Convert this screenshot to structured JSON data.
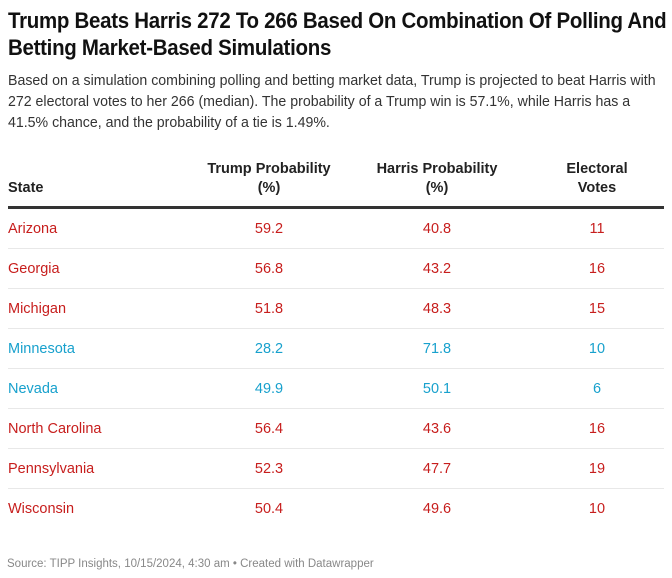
{
  "title": "Trump Beats Harris 272 To 266 Based On Combination Of Polling And Betting Market-Based Simulations",
  "description": "Based on a simulation combining polling and betting market data, Trump is projected to beat Harris with 272 electoral votes to her 266 (median). The probability of a Trump win is 57.1%, while Harris has a 41.5% chance, and the probability of a tie is 1.49%.",
  "colors": {
    "trump": "#c71e1d",
    "harris": "#18a1cd"
  },
  "table": {
    "headers": {
      "state": "State",
      "trump": [
        "Trump Probability",
        "(%)"
      ],
      "harris": [
        "Harris Probability",
        "(%)"
      ],
      "votes": [
        "Electoral",
        "Votes"
      ]
    },
    "rows": [
      {
        "state": "Arizona",
        "trump": "59.2",
        "harris": "40.8",
        "votes": "11",
        "lean": "trump"
      },
      {
        "state": "Georgia",
        "trump": "56.8",
        "harris": "43.2",
        "votes": "16",
        "lean": "trump"
      },
      {
        "state": "Michigan",
        "trump": "51.8",
        "harris": "48.3",
        "votes": "15",
        "lean": "trump"
      },
      {
        "state": "Minnesota",
        "trump": "28.2",
        "harris": "71.8",
        "votes": "10",
        "lean": "harris"
      },
      {
        "state": "Nevada",
        "trump": "49.9",
        "harris": "50.1",
        "votes": "6",
        "lean": "harris"
      },
      {
        "state": "North Carolina",
        "trump": "56.4",
        "harris": "43.6",
        "votes": "16",
        "lean": "trump"
      },
      {
        "state": "Pennsylvania",
        "trump": "52.3",
        "harris": "47.7",
        "votes": "19",
        "lean": "trump"
      },
      {
        "state": "Wisconsin",
        "trump": "50.4",
        "harris": "49.6",
        "votes": "10",
        "lean": "trump"
      }
    ]
  },
  "footer": "Source: TIPP Insights, 10/15/2024, 4:30 am • Created with Datawrapper"
}
